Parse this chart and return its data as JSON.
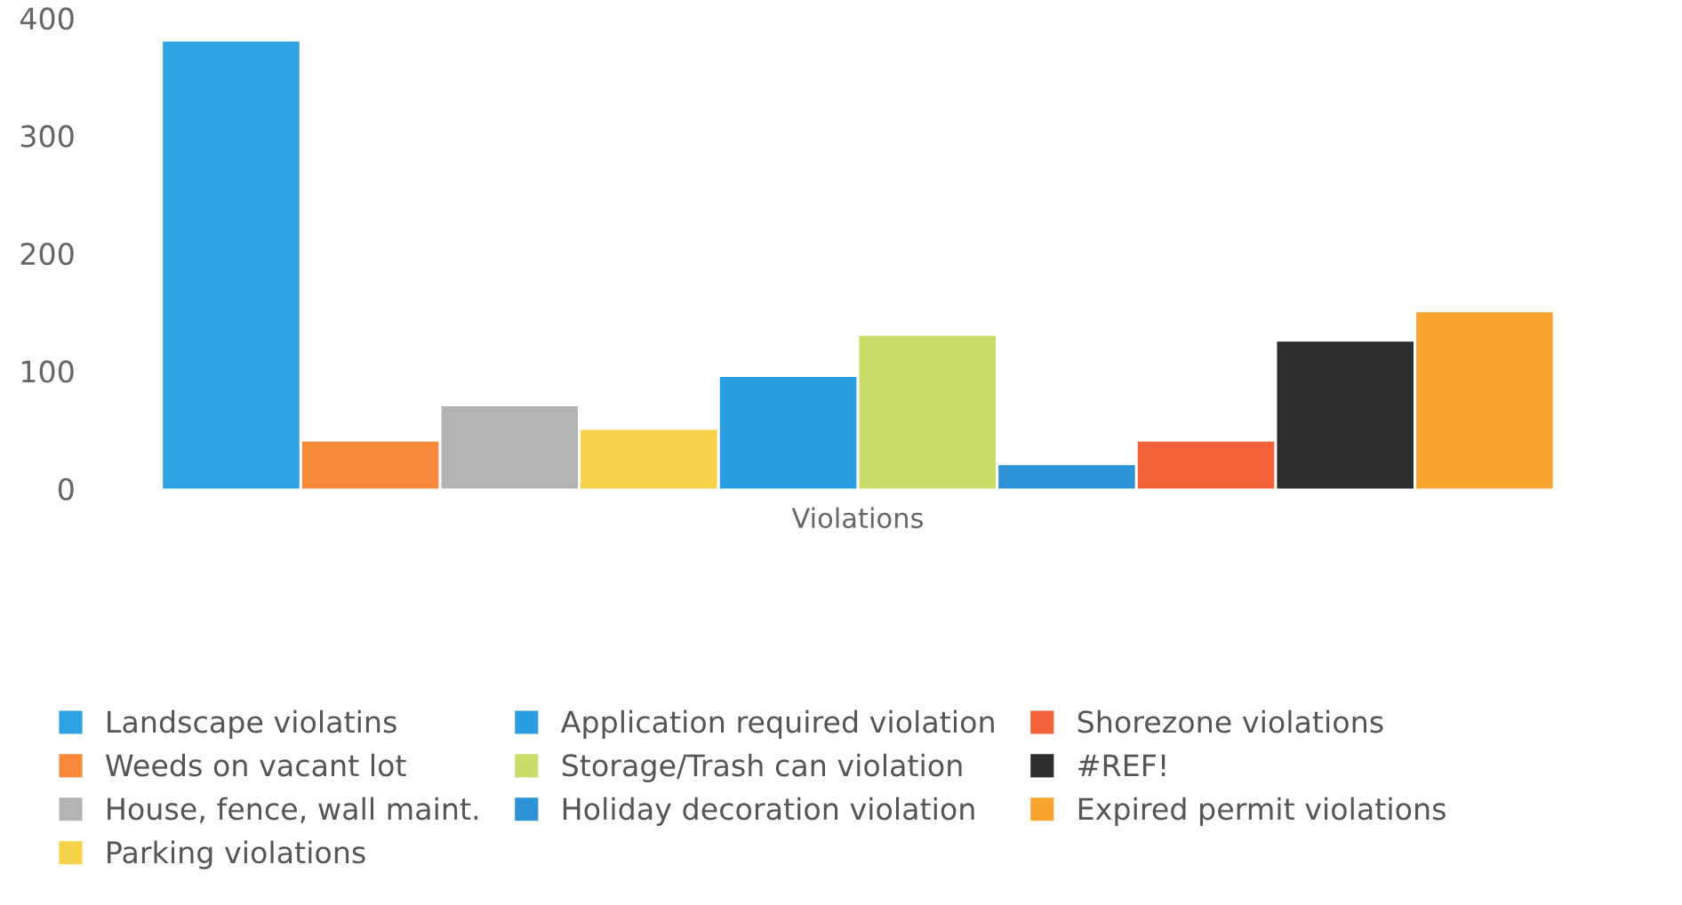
{
  "chart_data": {
    "type": "bar",
    "xlabel": "Violations",
    "categories": [
      null
    ],
    "series": [
      {
        "name": "Landscape violatins",
        "color": "#2ea3e3",
        "values": [
          380
        ]
      },
      {
        "name": "Weeds on vacant lot",
        "color": "#f7893a",
        "values": [
          40
        ]
      },
      {
        "name": "House, fence, wall maint.",
        "color": "#b3b3b3",
        "values": [
          70
        ]
      },
      {
        "name": "Parking violations",
        "color": "#f6d24a",
        "values": [
          50
        ]
      },
      {
        "name": "Application required violation",
        "color": "#2a9ee0",
        "values": [
          95
        ]
      },
      {
        "name": "Storage/Trash can violation",
        "color": "#c9dd6a",
        "values": [
          130
        ]
      },
      {
        "name": "Holiday decoration violation",
        "color": "#2b93d6",
        "values": [
          20
        ]
      },
      {
        "name": "Shorezone violations",
        "color": "#f4623a",
        "values": [
          40
        ]
      },
      {
        "name": "#REF!",
        "color": "#2d2d2d",
        "values": [
          125
        ]
      },
      {
        "name": "Expired permit violations",
        "color": "#f7a52e",
        "values": [
          150
        ]
      }
    ],
    "ylim": [
      0,
      400
    ],
    "yticks": [
      0,
      100,
      200,
      300,
      400
    ],
    "grid": false,
    "legend": "bottom"
  }
}
